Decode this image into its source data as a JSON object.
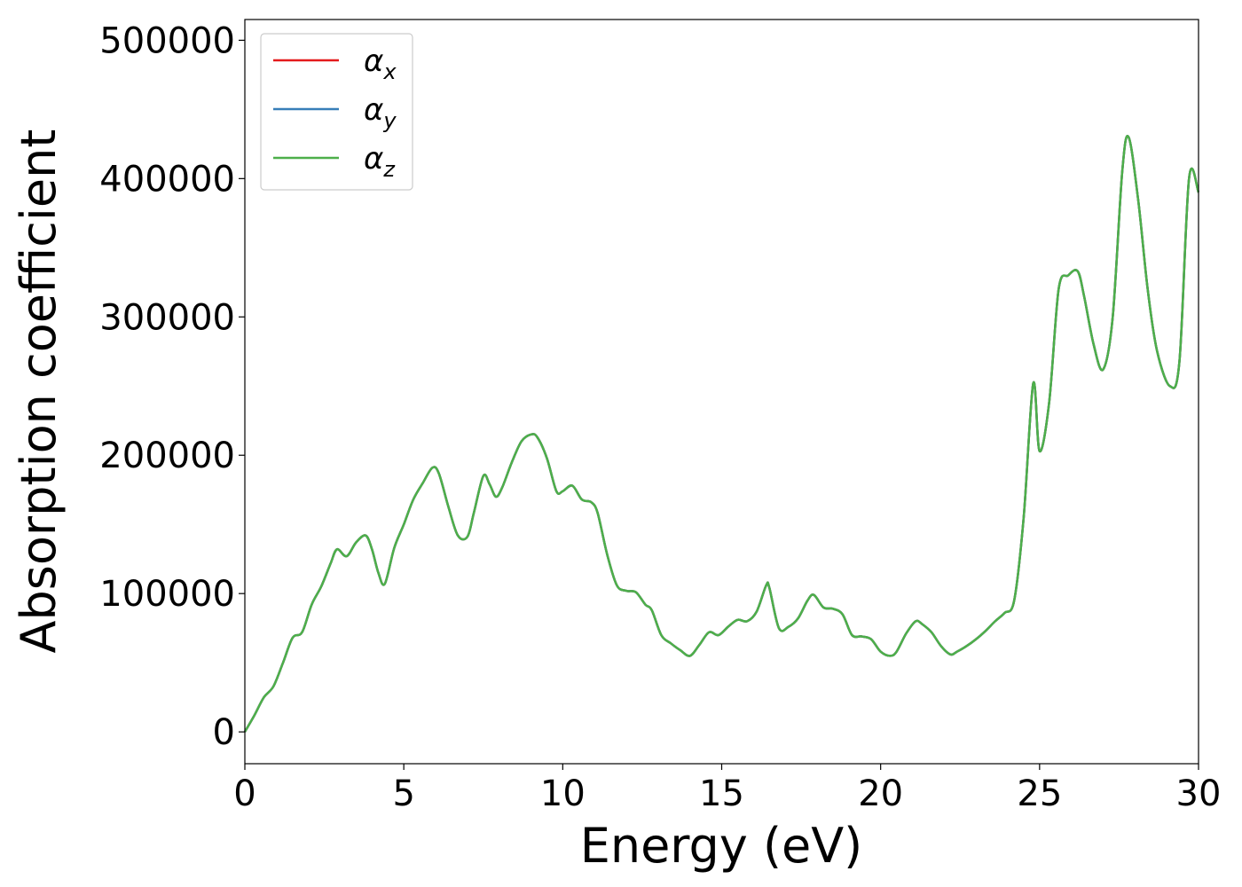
{
  "chart_data": {
    "type": "line",
    "xlabel": "Energy (eV)",
    "ylabel": "Absorption coefficient",
    "xlim": [
      0,
      30
    ],
    "ylim": [
      -23000,
      515000
    ],
    "xticks": [
      0,
      5,
      10,
      15,
      20,
      25,
      30
    ],
    "yticks": [
      0,
      100000,
      200000,
      300000,
      400000,
      500000
    ],
    "grid": false,
    "legend_position": "upper-left",
    "series": [
      {
        "name": "α",
        "subscript": "x",
        "color": "#e41a1c"
      },
      {
        "name": "α",
        "subscript": "y",
        "color": "#377eb8"
      },
      {
        "name": "α",
        "subscript": "z",
        "color": "#4daf4a"
      }
    ],
    "x": [
      0,
      0.3,
      0.6,
      0.9,
      1.2,
      1.5,
      1.8,
      2.1,
      2.4,
      2.7,
      2.9,
      3.2,
      3.5,
      3.8,
      4.0,
      4.2,
      4.4,
      4.7,
      5.0,
      5.3,
      5.6,
      5.9,
      6.1,
      6.4,
      6.7,
      7.0,
      7.2,
      7.5,
      7.7,
      7.9,
      8.1,
      8.4,
      8.7,
      9.0,
      9.2,
      9.5,
      9.8,
      10.0,
      10.3,
      10.6,
      10.9,
      11.1,
      11.4,
      11.7,
      12.0,
      12.3,
      12.6,
      12.8,
      13.1,
      13.4,
      13.7,
      14.0,
      14.3,
      14.6,
      14.9,
      15.2,
      15.5,
      15.8,
      16.1,
      16.4,
      16.5,
      16.8,
      17.1,
      17.4,
      17.7,
      17.9,
      18.2,
      18.5,
      18.8,
      19.1,
      19.4,
      19.7,
      20.0,
      20.3,
      20.5,
      20.8,
      21.1,
      21.3,
      21.6,
      21.9,
      22.2,
      22.4,
      22.7,
      23.0,
      23.3,
      23.6,
      23.9,
      24.2,
      24.5,
      24.8,
      25.0,
      25.3,
      25.6,
      25.9,
      26.2,
      26.4,
      26.7,
      27.0,
      27.3,
      27.6,
      27.8,
      28.1,
      28.4,
      28.7,
      29.1,
      29.4,
      29.7,
      30.0
    ],
    "y": [
      0,
      12000,
      25000,
      33000,
      50000,
      68000,
      72000,
      92000,
      105000,
      122000,
      132000,
      127000,
      137000,
      142000,
      132000,
      115000,
      107000,
      133000,
      150000,
      168000,
      180000,
      191000,
      187000,
      163000,
      142000,
      141000,
      158000,
      185000,
      179000,
      170000,
      177000,
      195000,
      210000,
      215000,
      213000,
      198000,
      174000,
      174000,
      178000,
      168000,
      166000,
      158000,
      128000,
      106000,
      102000,
      101000,
      92000,
      88000,
      70000,
      64000,
      59000,
      55000,
      63000,
      72000,
      70000,
      76000,
      81000,
      80000,
      87000,
      106000,
      104000,
      75000,
      76000,
      82000,
      95000,
      99000,
      90000,
      89000,
      85000,
      70000,
      69000,
      67000,
      58000,
      55000,
      58000,
      71000,
      80000,
      78000,
      72000,
      62000,
      56000,
      58000,
      62000,
      67000,
      73000,
      80000,
      86000,
      95000,
      155000,
      252000,
      203000,
      238000,
      320000,
      330000,
      333000,
      315000,
      280000,
      262000,
      300000,
      405000,
      430000,
      385000,
      320000,
      275000,
      250000,
      268000,
      400000,
      390000
    ]
  }
}
